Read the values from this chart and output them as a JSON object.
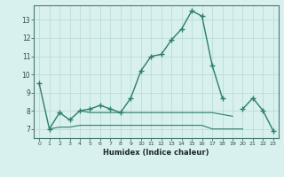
{
  "xlabel": "Humidex (Indice chaleur)",
  "x_values": [
    0,
    1,
    2,
    3,
    4,
    5,
    6,
    7,
    8,
    9,
    10,
    11,
    12,
    13,
    14,
    15,
    16,
    17,
    18,
    19,
    20,
    21,
    22,
    23
  ],
  "line1_y": [
    9.5,
    7.0,
    7.9,
    7.5,
    8.0,
    8.1,
    8.3,
    8.1,
    7.9,
    8.7,
    10.2,
    11.0,
    11.1,
    11.9,
    12.5,
    13.5,
    13.2,
    10.5,
    8.7,
    null,
    null,
    null,
    null,
    null
  ],
  "line_flat1_y": [
    null,
    7.0,
    7.1,
    7.1,
    7.2,
    7.2,
    7.2,
    7.2,
    7.2,
    7.2,
    7.2,
    7.2,
    7.2,
    7.2,
    7.2,
    7.2,
    7.2,
    7.0,
    7.0,
    7.0,
    7.0,
    null,
    null,
    null
  ],
  "line_flat2_y": [
    null,
    null,
    null,
    null,
    8.0,
    7.9,
    7.9,
    7.9,
    7.9,
    7.9,
    7.9,
    7.9,
    7.9,
    7.9,
    7.9,
    7.9,
    7.9,
    7.9,
    7.8,
    7.7,
    null,
    null,
    null,
    null
  ],
  "line3_y": [
    null,
    null,
    null,
    null,
    null,
    null,
    null,
    null,
    null,
    null,
    null,
    null,
    null,
    null,
    null,
    null,
    null,
    null,
    null,
    null,
    8.1,
    8.7,
    8.0,
    6.9
  ],
  "line_color": "#2d7d6e",
  "bg_color": "#d8f0ee",
  "grid_color": "#b8d8d4",
  "ylim": [
    6.5,
    13.8
  ],
  "xlim": [
    -0.5,
    23.5
  ],
  "yticks": [
    7,
    8,
    9,
    10,
    11,
    12,
    13
  ],
  "xticks": [
    0,
    1,
    2,
    3,
    4,
    5,
    6,
    7,
    8,
    9,
    10,
    11,
    12,
    13,
    14,
    15,
    16,
    17,
    18,
    19,
    20,
    21,
    22,
    23
  ]
}
